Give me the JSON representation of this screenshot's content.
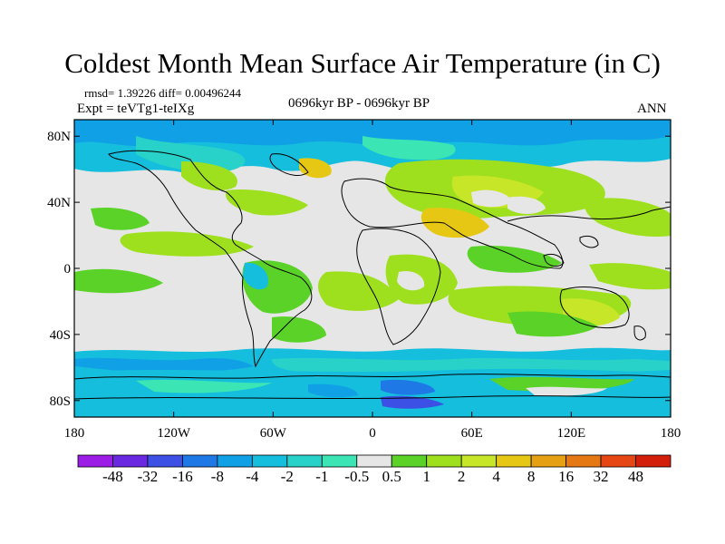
{
  "title": "Coldest Month Mean Surface Air Temperature (in C)",
  "rmsd_text": "rmsd= 1.39226 diff= 0.00496244",
  "expt_text": "Expt = teVTg1-teIXg",
  "period_text": "0696kyr BP - 0696kyr BP",
  "season": "ANN",
  "y_ticks": [
    "80N",
    "40N",
    "0",
    "40S",
    "80S"
  ],
  "x_ticks": [
    "180",
    "120W",
    "60W",
    "0",
    "60E",
    "120E",
    "180"
  ],
  "colorbar": {
    "labels": [
      "-48",
      "-32",
      "-16",
      "-8",
      "-4",
      "-2",
      "-1",
      "-0.5",
      "0.5",
      "1",
      "2",
      "4",
      "8",
      "16",
      "32",
      "48"
    ],
    "colors": [
      "#9c1ee6",
      "#6a28e0",
      "#3c50e6",
      "#1e78e6",
      "#0fa0e6",
      "#14bedc",
      "#28d2c8",
      "#3ce6b4",
      "#e6e6e6",
      "#5ad228",
      "#9ee01e",
      "#c8e628",
      "#e6c814",
      "#e6a014",
      "#e67814",
      "#e64614",
      "#d21e0a"
    ]
  }
}
